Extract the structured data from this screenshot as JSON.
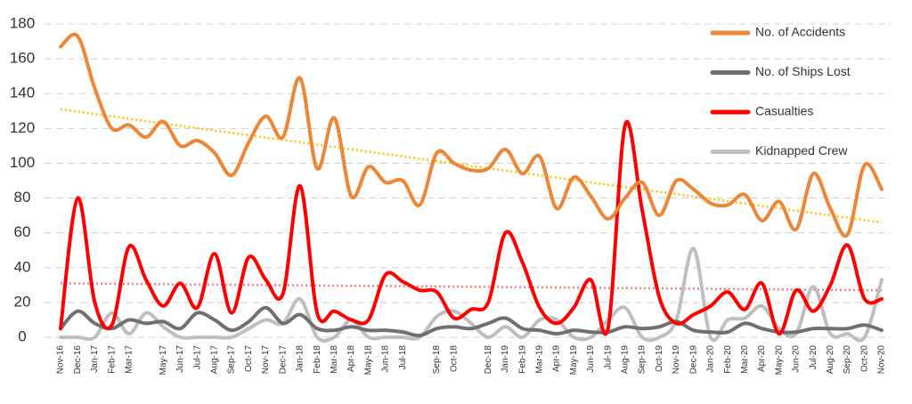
{
  "chart_data": {
    "type": "line",
    "categories": [
      "Nov-16",
      "Dec-16",
      "Jan-17",
      "Feb-17",
      "Mar-17",
      null,
      "May-17",
      "Jun-17",
      "Jul-17",
      "Aug-17",
      "Sep-17",
      "Oct-17",
      "Nov-17",
      "Dec-17",
      "Jan-18",
      "Feb-18",
      "Mar-18",
      "Apr-18",
      "May-18",
      "Jun-18",
      "Jul-18",
      null,
      "Sep-18",
      "Oct-18",
      null,
      "Dec-18",
      "Jan-19",
      "Feb-19",
      "Mar-19",
      "Apr-19",
      "May-19",
      "Jun-19",
      "Jul-19",
      "Aug-19",
      "Sep-19",
      "Oct-19",
      "Nov-19",
      "Dec-19",
      "Jan-20",
      "Feb-20",
      "Mar-20",
      "Apr-20",
      "May-20",
      "Jun-20",
      "Jul-20",
      "Aug-20",
      "Sep-20",
      "Oct-20",
      "Nov-20"
    ],
    "series": [
      {
        "name": "No. of Accidents",
        "color": "#ed8737",
        "values": [
          167,
          173,
          143,
          120,
          122,
          115,
          124,
          110,
          113,
          106,
          93,
          112,
          127,
          115,
          149,
          97,
          126,
          81,
          98,
          89,
          90,
          76,
          106,
          100,
          96,
          97,
          108,
          94,
          104,
          74,
          92,
          81,
          68,
          80,
          89,
          70,
          90,
          85,
          77,
          76,
          82,
          67,
          78,
          62,
          94,
          74,
          59,
          99,
          85
        ]
      },
      {
        "name": "No. of Ships Lost",
        "color": "#707070",
        "values": [
          5,
          15,
          8,
          5,
          10,
          8,
          9,
          5,
          14,
          10,
          4,
          9,
          17,
          8,
          13,
          5,
          4,
          6,
          4,
          4,
          3,
          1,
          5,
          6,
          5,
          8,
          11,
          5,
          4,
          2,
          4,
          3,
          3,
          6,
          5,
          6,
          9,
          4,
          3,
          3,
          8,
          5,
          3,
          3,
          5,
          5,
          5,
          7,
          4
        ]
      },
      {
        "name": "Casualties",
        "color": "#ff0000",
        "values": [
          5,
          80,
          20,
          7,
          52,
          33,
          18,
          31,
          17,
          48,
          14,
          46,
          33,
          25,
          87,
          14,
          15,
          10,
          10,
          36,
          32,
          27,
          26,
          11,
          16,
          20,
          60,
          43,
          17,
          8,
          17,
          33,
          5,
          122,
          73,
          23,
          8,
          13,
          18,
          26,
          16,
          31,
          2,
          27,
          15,
          30,
          53,
          22,
          22
        ]
      },
      {
        "name": "Kidnapped Crew",
        "color": "#bfbfbf",
        "values": [
          0,
          0,
          0,
          14,
          2,
          14,
          6,
          0,
          0,
          0,
          0,
          5,
          10,
          8,
          22,
          0,
          0,
          10,
          0,
          0,
          0,
          0,
          12,
          15,
          8,
          0,
          6,
          0,
          10,
          10,
          0,
          0,
          10,
          17,
          0,
          0,
          10,
          51,
          0,
          10,
          11,
          18,
          5,
          2,
          29,
          2,
          2,
          0,
          33
        ]
      }
    ],
    "trendlines": [
      {
        "color": "#ffc000",
        "values": [
          131,
          66
        ]
      },
      {
        "color": "#ff7c80",
        "values": [
          31,
          27
        ]
      }
    ],
    "ylim": [
      0,
      180
    ],
    "yticks": [
      0,
      20,
      40,
      60,
      80,
      100,
      120,
      140,
      160,
      180
    ],
    "grid": true,
    "legend": "top-right"
  }
}
